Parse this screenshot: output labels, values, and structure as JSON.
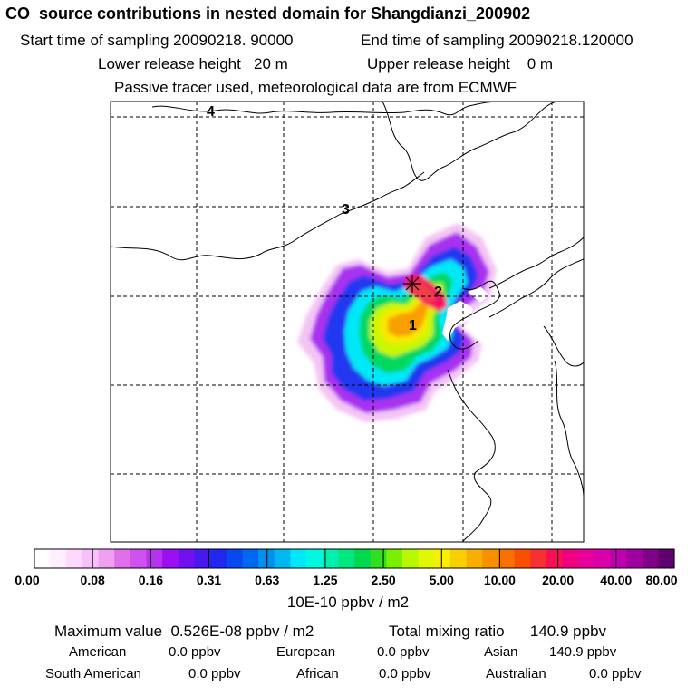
{
  "header": {
    "title": "CO  source contributions in nested domain for Shangdianzi_200902",
    "start_time": "Start time of sampling 20090218. 90000",
    "end_time": "End time of sampling 20090218.120000",
    "lower_release": "Lower release height   20 m",
    "upper_release": "Upper release height    0 m",
    "note": "Passive tracer used, meteorological data are from ECMWF"
  },
  "map": {
    "region_labels": [
      "1",
      "2",
      "3",
      "4"
    ],
    "station_marker": "station-cross"
  },
  "colorbar": {
    "tick_labels": [
      "0.00",
      "0.08",
      "0.16",
      "0.31",
      "0.63",
      "1.25",
      "2.50",
      "5.00",
      "10.00",
      "20.00",
      "40.00",
      "80.00"
    ],
    "unit": "10E-10 ppbv / m2",
    "colors": [
      "#ffffff",
      "#ffeeff",
      "#ffd8ff",
      "#f8c0f8",
      "#f0a0f0",
      "#e070e8",
      "#d050f0",
      "#b830f0",
      "#9a10f0",
      "#7010f0",
      "#4818f0",
      "#2028f0",
      "#0848f0",
      "#0068f0",
      "#0090f0",
      "#00b8f0",
      "#00e8f8",
      "#00f8e0",
      "#00f0b0",
      "#00e880",
      "#00d850",
      "#30e020",
      "#78f000",
      "#b8f800",
      "#e0f800",
      "#f8f000",
      "#f8d000",
      "#f8b000",
      "#f89000",
      "#f87000",
      "#f85000",
      "#f83030",
      "#f81050",
      "#f00080",
      "#e8009a",
      "#d800a8",
      "#c000b0",
      "#a000a0",
      "#800088",
      "#600070"
    ]
  },
  "footer": {
    "max_value": "Maximum value  0.526E-08 ppbv / m2",
    "total_ratio": "Total mixing ratio      140.9 ppbv",
    "american_label": "American",
    "american_value": "0.0 ppbv",
    "european_label": "European",
    "european_value": "0.0 ppbv",
    "asian_label": "Asian",
    "asian_value": "140.9 ppbv",
    "south_american_label": "South American",
    "south_american_value": "0.0 ppbv",
    "african_label": "African",
    "african_value": "0.0 ppbv",
    "australian_label": "Australian",
    "australian_value": "0.0 ppbv"
  }
}
